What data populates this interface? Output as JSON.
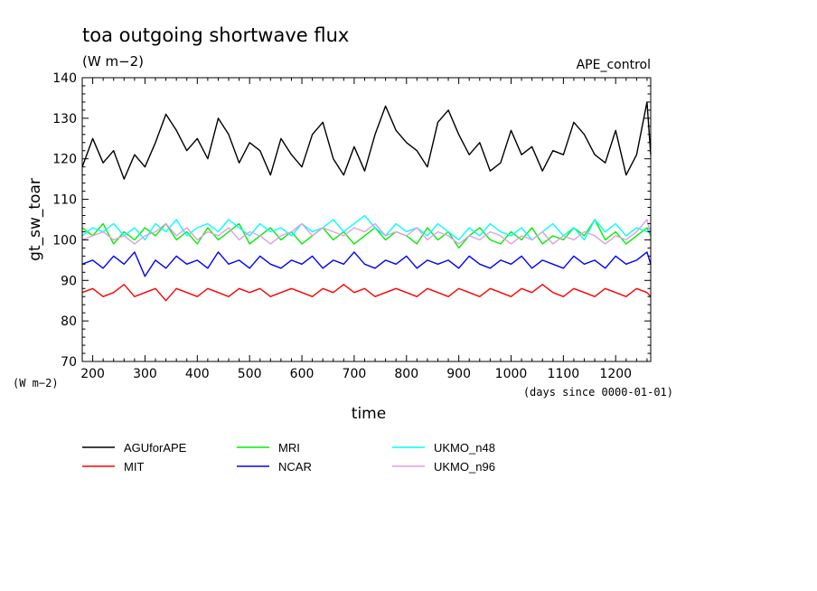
{
  "header": {
    "title": "toa outgoing shortwave flux",
    "units": "(W m−2)",
    "run_label": "APE_control"
  },
  "chart_data": {
    "type": "line",
    "xlabel": "time",
    "x_units": "(days since 0000-01-01)",
    "ylabel": "gt_sw_toar",
    "y_units": "(W m−2)",
    "xlim": [
      180,
      1267
    ],
    "ylim": [
      70,
      140
    ],
    "x_ticks": [
      "200",
      "300",
      "400",
      "500",
      "600",
      "700",
      "800",
      "900",
      "1000",
      "1100",
      "1200"
    ],
    "y_ticks": [
      "70",
      "80",
      "90",
      "100",
      "110",
      "120",
      "130",
      "140"
    ],
    "grid": false,
    "legend_position": "below",
    "x": [
      180,
      200,
      220,
      240,
      260,
      280,
      300,
      320,
      340,
      360,
      380,
      400,
      420,
      440,
      460,
      480,
      500,
      520,
      540,
      560,
      580,
      600,
      620,
      640,
      660,
      680,
      700,
      720,
      740,
      760,
      780,
      800,
      820,
      840,
      860,
      880,
      900,
      920,
      940,
      960,
      980,
      1000,
      1020,
      1040,
      1060,
      1080,
      1100,
      1120,
      1140,
      1160,
      1180,
      1200,
      1220,
      1240,
      1260,
      1267
    ],
    "series": [
      {
        "name": "AGUforAPE",
        "color": "#000000",
        "values": [
          118,
          125,
          119,
          122,
          115,
          121,
          118,
          124,
          131,
          127,
          122,
          125,
          120,
          130,
          126,
          119,
          124,
          122,
          116,
          125,
          121,
          118,
          126,
          129,
          120,
          116,
          123,
          117,
          126,
          133,
          127,
          124,
          122,
          118,
          129,
          132,
          126,
          121,
          124,
          117,
          119,
          127,
          121,
          123,
          117,
          122,
          121,
          129,
          126,
          121,
          119,
          127,
          116,
          121,
          134,
          121
        ]
      },
      {
        "name": "MIT",
        "color": "#ff0000",
        "values": [
          87,
          88,
          86,
          87,
          89,
          86,
          87,
          88,
          85,
          88,
          87,
          86,
          88,
          87,
          86,
          88,
          87,
          88,
          86,
          87,
          88,
          87,
          86,
          88,
          87,
          89,
          87,
          88,
          86,
          87,
          88,
          87,
          86,
          88,
          87,
          86,
          88,
          87,
          86,
          88,
          87,
          86,
          88,
          87,
          89,
          87,
          86,
          88,
          87,
          86,
          88,
          87,
          86,
          88,
          87,
          86
        ]
      },
      {
        "name": "MRI",
        "color": "#00ee00",
        "values": [
          103,
          101,
          104,
          99,
          102,
          100,
          103,
          101,
          104,
          100,
          102,
          99,
          103,
          100,
          102,
          104,
          99,
          101,
          103,
          100,
          102,
          99,
          101,
          103,
          100,
          102,
          99,
          101,
          103,
          100,
          102,
          101,
          99,
          103,
          100,
          102,
          98,
          101,
          103,
          100,
          99,
          102,
          100,
          103,
          99,
          101,
          100,
          103,
          101,
          105,
          100,
          102,
          99,
          101,
          103,
          101
        ]
      },
      {
        "name": "NCAR",
        "color": "#0000ff",
        "values": [
          94,
          95,
          93,
          96,
          94,
          97,
          91,
          95,
          93,
          96,
          94,
          95,
          93,
          97,
          94,
          95,
          93,
          96,
          94,
          93,
          95,
          94,
          96,
          93,
          95,
          94,
          97,
          94,
          93,
          95,
          94,
          96,
          93,
          95,
          94,
          95,
          93,
          96,
          94,
          93,
          95,
          94,
          96,
          93,
          95,
          94,
          93,
          96,
          94,
          95,
          93,
          96,
          94,
          95,
          97,
          94
        ]
      },
      {
        "name": "UKMO_n48",
        "color": "#00ffff",
        "values": [
          101,
          103,
          102,
          104,
          101,
          103,
          100,
          104,
          102,
          105,
          101,
          103,
          104,
          102,
          105,
          103,
          101,
          104,
          102,
          103,
          101,
          104,
          102,
          103,
          105,
          102,
          104,
          106,
          103,
          101,
          104,
          102,
          103,
          101,
          104,
          102,
          100,
          103,
          101,
          104,
          102,
          101,
          103,
          100,
          102,
          104,
          101,
          103,
          100,
          105,
          102,
          104,
          101,
          103,
          102,
          103
        ]
      },
      {
        "name": "UKMO_n96",
        "color": "#dda0dd",
        "values": [
          100,
          101,
          102,
          100,
          101,
          99,
          101,
          102,
          104,
          101,
          103,
          100,
          102,
          101,
          103,
          100,
          102,
          101,
          99,
          101,
          102,
          104,
          101,
          103,
          102,
          101,
          103,
          102,
          104,
          101,
          102,
          101,
          103,
          100,
          102,
          101,
          99,
          101,
          100,
          102,
          101,
          99,
          101,
          100,
          102,
          99,
          101,
          100,
          102,
          101,
          99,
          101,
          100,
          102,
          105,
          101
        ]
      }
    ]
  }
}
